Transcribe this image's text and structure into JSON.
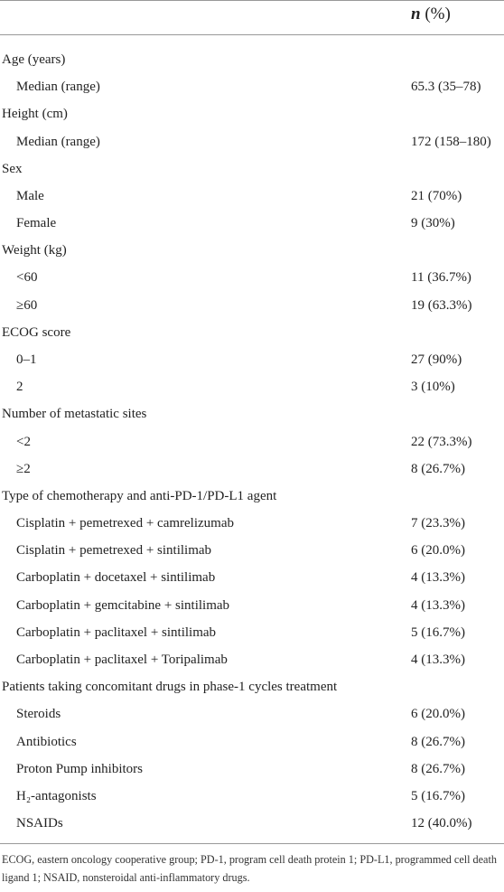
{
  "header": {
    "n": "n",
    "unit": "(%)"
  },
  "table": {
    "groups": [
      {
        "label": "Age (years)",
        "rows": [
          [
            "Median (range)",
            "65.3 (35–78)"
          ]
        ]
      },
      {
        "label": "Height (cm)",
        "rows": [
          [
            "Median (range)",
            "172 (158–180)"
          ]
        ]
      },
      {
        "label": "Sex",
        "rows": [
          [
            "Male",
            "21 (70%)"
          ],
          [
            "Female",
            "9 (30%)"
          ]
        ]
      },
      {
        "label": "Weight (kg)",
        "rows": [
          [
            "<60",
            "11 (36.7%)"
          ],
          [
            "≥60",
            "19 (63.3%)"
          ]
        ]
      },
      {
        "label": "ECOG score",
        "rows": [
          [
            "0–1",
            "27 (90%)"
          ],
          [
            "2",
            "3 (10%)"
          ]
        ]
      },
      {
        "label": "Number of metastatic sites",
        "rows": [
          [
            "<2",
            "22 (73.3%)"
          ],
          [
            "≥2",
            "8 (26.7%)"
          ]
        ]
      },
      {
        "label": "Type of chemotherapy and anti-PD-1/PD-L1 agent",
        "rows": [
          [
            "Cisplatin + pemetrexed + camrelizumab",
            "7 (23.3%)"
          ],
          [
            "Cisplatin + pemetrexed + sintilimab",
            "6 (20.0%)"
          ],
          [
            "Carboplatin + docetaxel + sintilimab",
            "4 (13.3%)"
          ],
          [
            "Carboplatin + gemcitabine + sintilimab",
            "4 (13.3%)"
          ],
          [
            "Carboplatin + paclitaxel + sintilimab",
            "5 (16.7%)"
          ],
          [
            "Carboplatin + paclitaxel + Toripalimab",
            "4 (13.3%)"
          ]
        ]
      },
      {
        "label": "Patients taking concomitant drugs in phase-1 cycles treatment",
        "rows": [
          [
            "Steroids",
            "6 (20.0%)"
          ],
          [
            "Antibiotics",
            "8 (26.7%)"
          ],
          [
            "Proton Pump inhibitors",
            "8 (26.7%)"
          ],
          [
            "H₂-antagonists",
            "5 (16.7%)"
          ],
          [
            "NSAIDs",
            "12 (40.0%)"
          ]
        ]
      }
    ]
  },
  "footnote": "ECOG, eastern oncology cooperative group; PD-1, program cell death protein 1; PD-L1, programmed cell death ligand 1; NSAID, nonsteroidal anti-inflammatory drugs."
}
